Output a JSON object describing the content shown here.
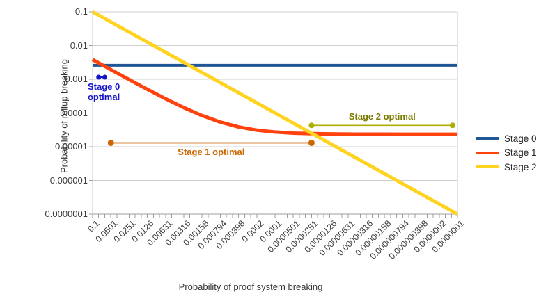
{
  "chart_data": {
    "type": "line",
    "title": "",
    "xlabel": "Probability of proof system breaking",
    "ylabel": "Probability of rollup breaking",
    "x_scale": "log",
    "y_scale": "log",
    "x_axis_descending": true,
    "x_range": [
      0.1,
      1e-07
    ],
    "y_range": [
      1e-07,
      0.1
    ],
    "grid": true,
    "legend_position": "right",
    "x_ticks": [
      "0.1",
      "0.0501",
      "0.0251",
      "0.0126",
      "0.00631",
      "0.00316",
      "0.00158",
      "0.000794",
      "0.000398",
      "0.0002",
      "0.0001",
      "0.0000501",
      "0.0000251",
      "0.0000126",
      "0.00000631",
      "0.00000316",
      "0.00000158",
      "0.000000794",
      "0.000000398",
      "0.0000002",
      "0.0000001"
    ],
    "y_ticks": [
      "0.1",
      "0.01",
      "0.001",
      "0.0001",
      "0.00001",
      "0.000001",
      "0.0000001"
    ],
    "series": [
      {
        "name": "Stage 0",
        "color": "#1F5796",
        "x": [
          0.1,
          1e-07
        ],
        "y": [
          0.0026,
          0.0026
        ]
      },
      {
        "name": "Stage 1",
        "color": "#FF420E",
        "x": [
          0.1,
          0.0501,
          0.0251,
          0.0126,
          0.00631,
          0.00316,
          0.00158,
          0.000794,
          0.000398,
          0.0002,
          0.0001,
          5.01e-05,
          2.51e-05,
          1.26e-05,
          6.31e-06,
          3.16e-06,
          1.58e-06,
          7.94e-07,
          3.98e-07,
          2e-07,
          1e-07
        ],
        "y": [
          0.00383,
          0.00193,
          0.00098,
          0.000503,
          0.000264,
          0.000144,
          8.36e-05,
          5.37e-05,
          3.86e-05,
          3.1e-05,
          2.72e-05,
          2.53e-05,
          2.44e-05,
          2.39e-05,
          2.36e-05,
          2.35e-05,
          2.35e-05,
          2.34e-05,
          2.34e-05,
          2.34e-05,
          2.34e-05
        ]
      },
      {
        "name": "Stage 2",
        "color": "#FFD320",
        "x": [
          0.1,
          1e-07
        ],
        "y": [
          0.1,
          1e-07
        ]
      }
    ],
    "annotations": [
      {
        "label": "Stage 0\noptimal",
        "color": "#1414CC",
        "label_color": "#1414CC",
        "x_start": 0.0794,
        "x_end": 0.0631,
        "y": 0.00115
      },
      {
        "label": "Stage 1 optimal",
        "color": "#CC6600",
        "label_color": "#CC6600",
        "x_start": 0.0501,
        "x_end": 2.51e-05,
        "y": 1.3e-05
      },
      {
        "label": "Stage 2 optimal",
        "color": "#AEAE00",
        "label_color": "#7A7A00",
        "x_start": 2.51e-05,
        "x_end": 1.2e-07,
        "y": 4.3e-05
      }
    ]
  }
}
